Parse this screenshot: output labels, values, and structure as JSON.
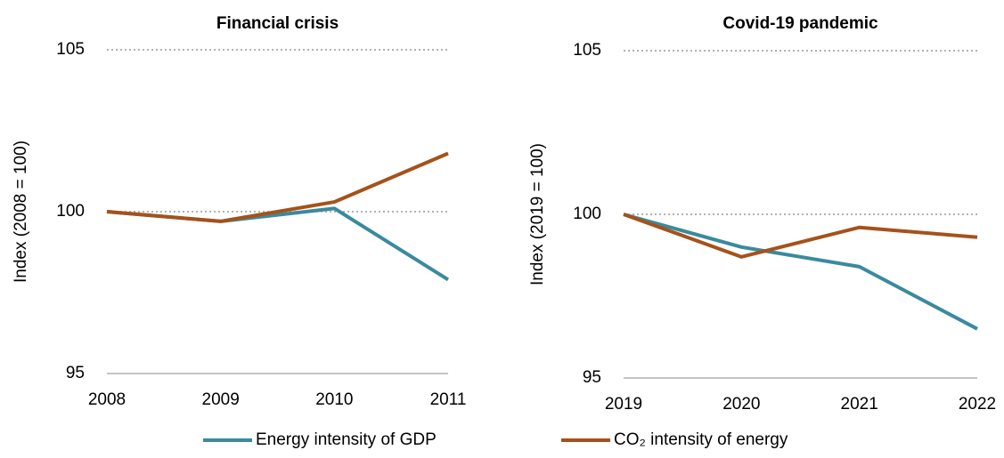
{
  "chart_data": [
    {
      "type": "line",
      "title": "Financial crisis",
      "y_label": "Index (2008 = 100)",
      "x": [
        2008,
        2009,
        2010,
        2011
      ],
      "xlim": [
        2008,
        2011
      ],
      "ylim": [
        95,
        105
      ],
      "yticks": [
        95,
        100,
        105
      ],
      "grid": true,
      "series": [
        {
          "name": "Energy intensity of GDP",
          "color": "#3a8a9e",
          "values": [
            100,
            99.7,
            100.1,
            97.9
          ]
        },
        {
          "name": "CO₂ intensity of energy",
          "color": "#a5521a",
          "values": [
            100,
            99.7,
            100.3,
            101.8
          ]
        }
      ]
    },
    {
      "type": "line",
      "title": "Covid-19 pandemic",
      "y_label": "Index (2019 = 100)",
      "x": [
        2019,
        2020,
        2021,
        2022
      ],
      "xlim": [
        2019,
        2022
      ],
      "ylim": [
        95,
        105
      ],
      "yticks": [
        95,
        100,
        105
      ],
      "grid": true,
      "series": [
        {
          "color": "#3a8a9e",
          "values": [
            100,
            99.0,
            98.4,
            96.5
          ]
        },
        {
          "color": "#a5521a",
          "values": [
            100,
            98.7,
            99.6,
            99.3
          ]
        }
      ]
    }
  ]
}
